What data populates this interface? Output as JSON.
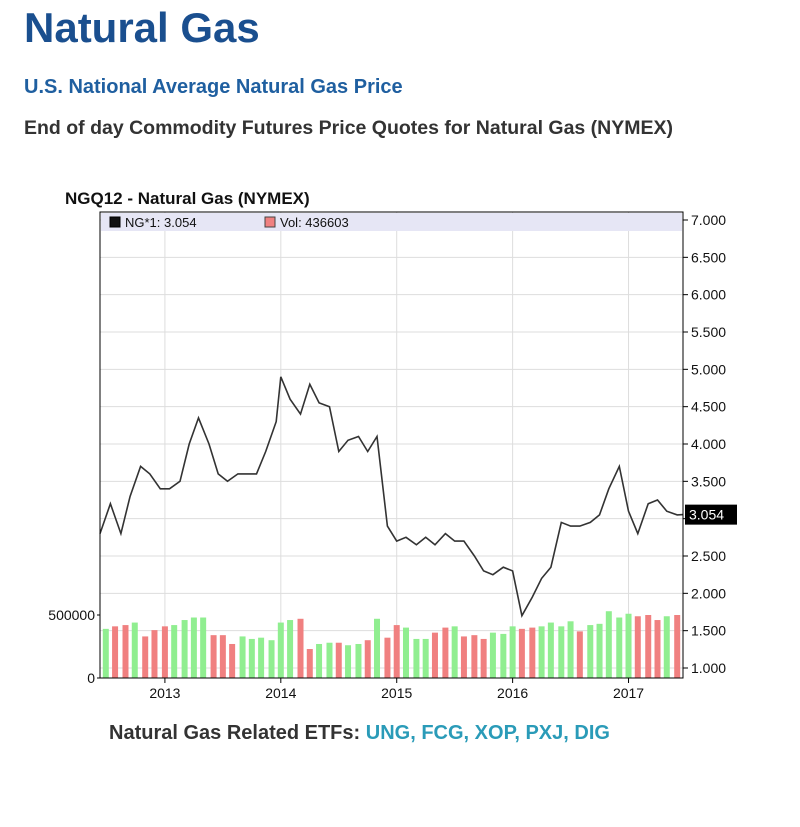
{
  "header": {
    "title": "Natural Gas",
    "subtitle": "U.S. National Average Natural Gas Price",
    "description": "End of day Commodity Futures Price Quotes for Natural Gas (NYMEX)"
  },
  "etfs": {
    "label": "Natural Gas Related ETFs:",
    "links": [
      "UNG",
      "FCG",
      "XOP",
      "PXJ",
      "DIG"
    ]
  },
  "colors": {
    "title": "#1a4f8f",
    "link": "#2a9bb8",
    "price_line": "#333333",
    "volume_up": "#90ee90",
    "volume_down": "#f08080",
    "legend_bg": "#e6e6f5"
  },
  "chart_data": {
    "type": "line",
    "title": "NGQ12 - Natural Gas (NYMEX)",
    "legend": {
      "price_label": "NG*1: 3.054",
      "volume_label": "Vol: 436603",
      "placement": "top"
    },
    "last_price_label": "3.054",
    "x_ticks": [
      "2013",
      "2014",
      "2015",
      "2016",
      "2017"
    ],
    "x_range": [
      2012.44,
      2017.47
    ],
    "price_axis": {
      "ticks": [
        "7.000",
        "6.500",
        "6.000",
        "5.500",
        "5.000",
        "4.500",
        "4.000",
        "3.500",
        "3.000",
        "2.500",
        "2.000",
        "1.500",
        "1.000"
      ],
      "range": [
        1.0,
        7.0
      ],
      "position": "right"
    },
    "volume_axis": {
      "ticks": [
        "500000",
        "0"
      ],
      "range": [
        0,
        500000
      ],
      "position": "left"
    },
    "grid": true,
    "series": [
      {
        "name": "NG*1",
        "x": [
          2012.44,
          2012.53,
          2012.62,
          2012.7,
          2012.79,
          2012.87,
          2012.96,
          2013.04,
          2013.13,
          2013.21,
          2013.29,
          2013.38,
          2013.46,
          2013.54,
          2013.63,
          2013.71,
          2013.79,
          2013.87,
          2013.96,
          2014.0,
          2014.08,
          2014.17,
          2014.25,
          2014.33,
          2014.42,
          2014.5,
          2014.58,
          2014.67,
          2014.75,
          2014.83,
          2014.92,
          2015.0,
          2015.08,
          2015.17,
          2015.25,
          2015.33,
          2015.42,
          2015.5,
          2015.58,
          2015.67,
          2015.75,
          2015.83,
          2015.92,
          2016.0,
          2016.08,
          2016.17,
          2016.25,
          2016.33,
          2016.42,
          2016.5,
          2016.58,
          2016.67,
          2016.75,
          2016.83,
          2016.92,
          2017.0,
          2017.08,
          2017.17,
          2017.25,
          2017.33,
          2017.42,
          2017.47
        ],
        "values": [
          2.8,
          3.2,
          2.8,
          3.3,
          3.7,
          3.6,
          3.4,
          3.4,
          3.5,
          4.0,
          4.35,
          4.0,
          3.6,
          3.5,
          3.6,
          3.6,
          3.6,
          3.9,
          4.3,
          4.9,
          4.6,
          4.4,
          4.8,
          4.55,
          4.5,
          3.9,
          4.05,
          4.1,
          3.9,
          4.1,
          2.9,
          2.7,
          2.75,
          2.65,
          2.75,
          2.65,
          2.8,
          2.7,
          2.7,
          2.5,
          2.3,
          2.25,
          2.35,
          2.3,
          1.7,
          1.95,
          2.2,
          2.35,
          2.95,
          2.9,
          2.9,
          2.95,
          3.05,
          3.4,
          3.7,
          3.1,
          2.8,
          3.2,
          3.25,
          3.1,
          3.05,
          3.054
        ]
      },
      {
        "name": "Vol",
        "x": [
          2012.49,
          2012.57,
          2012.66,
          2012.74,
          2012.83,
          2012.91,
          2013.0,
          2013.08,
          2013.17,
          2013.25,
          2013.33,
          2013.42,
          2013.5,
          2013.58,
          2013.67,
          2013.75,
          2013.83,
          2013.92,
          2014.0,
          2014.08,
          2014.17,
          2014.25,
          2014.33,
          2014.42,
          2014.5,
          2014.58,
          2014.67,
          2014.75,
          2014.83,
          2014.92,
          2015.0,
          2015.08,
          2015.17,
          2015.25,
          2015.33,
          2015.42,
          2015.5,
          2015.58,
          2015.67,
          2015.75,
          2015.83,
          2015.92,
          2016.0,
          2016.08,
          2016.17,
          2016.25,
          2016.33,
          2016.42,
          2016.5,
          2016.58,
          2016.67,
          2016.75,
          2016.83,
          2016.92,
          2017.0,
          2017.08,
          2017.17,
          2017.25,
          2017.33,
          2017.42
        ],
        "values": [
          390000,
          410000,
          420000,
          440000,
          330000,
          380000,
          410000,
          420000,
          460000,
          480000,
          480000,
          340000,
          340000,
          270000,
          330000,
          310000,
          320000,
          300000,
          440000,
          460000,
          470000,
          230000,
          270000,
          280000,
          280000,
          260000,
          270000,
          300000,
          470000,
          320000,
          420000,
          400000,
          310000,
          310000,
          360000,
          400000,
          410000,
          330000,
          340000,
          310000,
          360000,
          350000,
          410000,
          390000,
          400000,
          410000,
          440000,
          410000,
          450000,
          370000,
          420000,
          430000,
          530000,
          480000,
          510000,
          490000,
          500000,
          460000,
          490000,
          500000
        ],
        "direction": [
          "up",
          "down",
          "down",
          "up",
          "down",
          "down",
          "down",
          "up",
          "up",
          "up",
          "up",
          "down",
          "down",
          "down",
          "up",
          "up",
          "up",
          "up",
          "up",
          "up",
          "down",
          "down",
          "up",
          "up",
          "down",
          "up",
          "up",
          "down",
          "up",
          "down",
          "down",
          "up",
          "up",
          "up",
          "down",
          "down",
          "up",
          "down",
          "down",
          "down",
          "up",
          "up",
          "up",
          "down",
          "down",
          "up",
          "up",
          "up",
          "up",
          "down",
          "up",
          "up",
          "up",
          "up",
          "up",
          "down",
          "down",
          "down",
          "up",
          "down"
        ]
      }
    ]
  }
}
